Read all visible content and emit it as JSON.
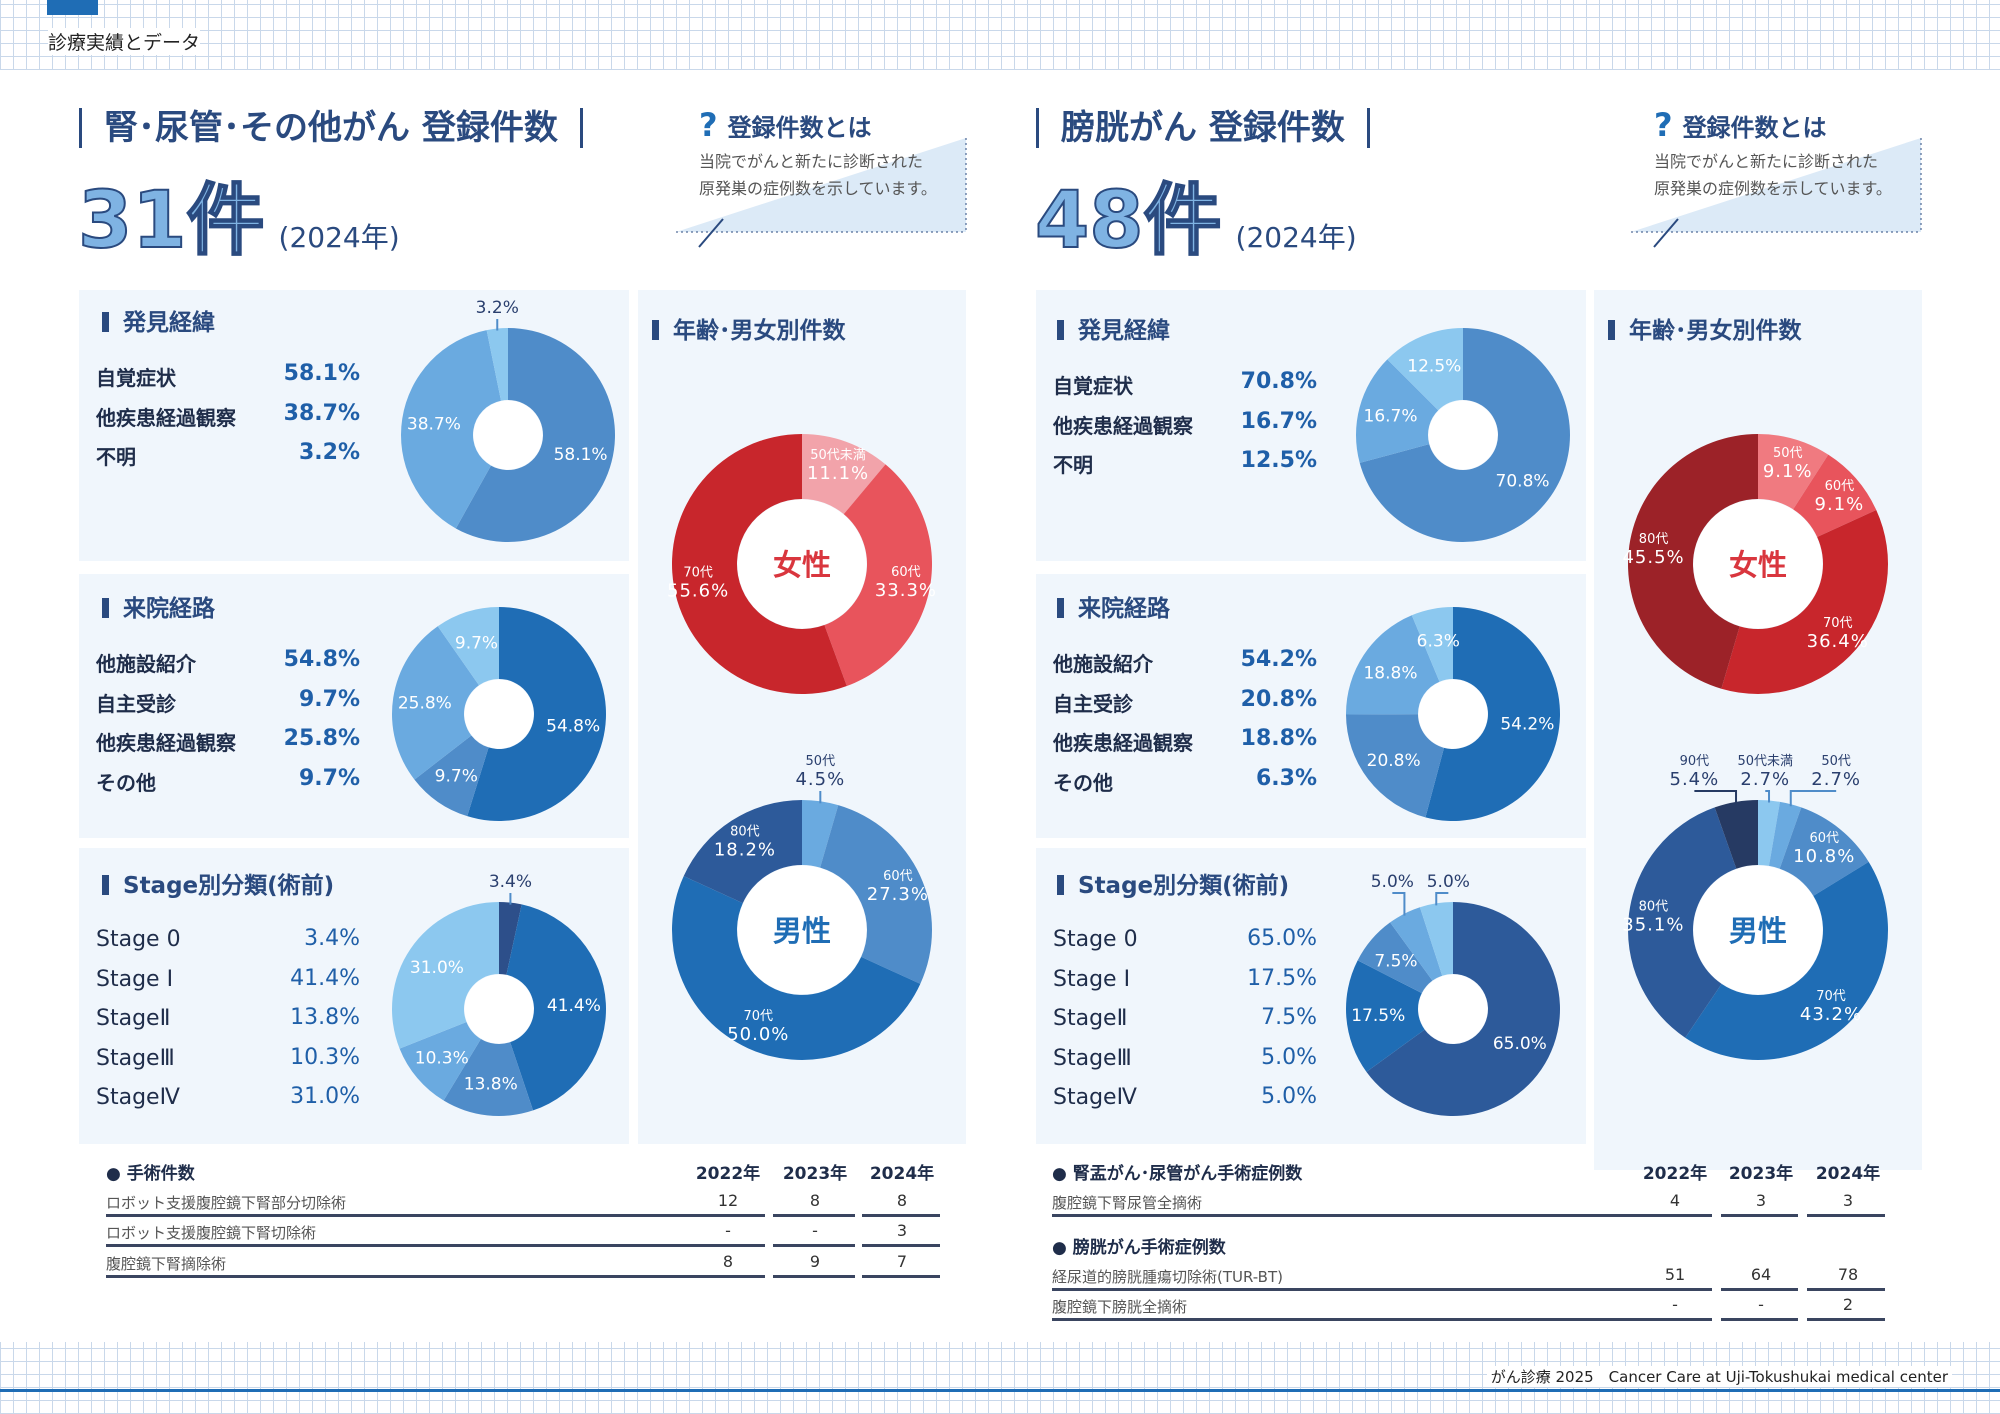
{
  "header": {
    "section": "診療実績とデータ"
  },
  "footer": {
    "text": "がん診療 2025　Cancer Care at Uji-Tokushukai medical center"
  },
  "left": {
    "title": "腎･尿管･その他がん 登録件数",
    "count": "31件",
    "year": "(2024年)",
    "info_title": "登録件数とは",
    "info_lines": [
      "当院でがんと新たに診断された",
      "原発巣の症例数を示しています。"
    ],
    "panels": {
      "discovery": "発見経緯",
      "route": "来院経路",
      "stage": "Stage別分類(術前)",
      "age": "年齢･男女別件数"
    },
    "table": {
      "heading": "手術件数",
      "years": [
        "2022年",
        "2023年",
        "2024年"
      ],
      "rows": [
        {
          "label": "ロボット支援腹腔鏡下腎部分切除術",
          "values": [
            "12",
            "8",
            "8"
          ]
        },
        {
          "label": "ロボット支援腹腔鏡下腎切除術",
          "values": [
            "-",
            "-",
            "3"
          ]
        },
        {
          "label": "腹腔鏡下腎摘除術",
          "values": [
            "8",
            "9",
            "7"
          ]
        }
      ]
    }
  },
  "right": {
    "title": "膀胱がん 登録件数",
    "count": "48件",
    "year": "(2024年)",
    "info_title": "登録件数とは",
    "info_lines": [
      "当院でがんと新たに診断された",
      "原発巣の症例数を示しています。"
    ],
    "panels": {
      "discovery": "発見経緯",
      "route": "来院経路",
      "stage": "Stage別分類(術前)",
      "age": "年齢･男女別件数"
    },
    "table": {
      "heading": "腎盂がん･尿管がん手術症例数",
      "years": [
        "2022年",
        "2023年",
        "2024年"
      ],
      "rows": [
        {
          "label": "腹腔鏡下腎尿管全摘術",
          "values": [
            "4",
            "3",
            "3"
          ]
        }
      ],
      "heading2": "膀胱がん手術症例数",
      "rows2": [
        {
          "label": "経尿道的膀胱腫瘍切除術(TUR-BT)",
          "values": [
            "51",
            "64",
            "78"
          ]
        },
        {
          "label": "腹腔鏡下膀胱全摘術",
          "values": [
            "-",
            "-",
            "2"
          ]
        }
      ]
    }
  },
  "chart_data": [
    {
      "type": "pie",
      "categories": [
        "自覚症状",
        "他疾患経過観察",
        "不明"
      ],
      "values": [
        58.1,
        38.7,
        3.2
      ],
      "colors": [
        "#4f8cc9",
        "#6aaae0",
        "#8cc8ef"
      ]
    },
    {
      "type": "pie",
      "categories": [
        "他施設紹介",
        "自主受診",
        "他疾患経過観察",
        "その他"
      ],
      "values": [
        54.8,
        9.7,
        25.8,
        9.7
      ],
      "colors": [
        "#1f6db5",
        "#4f8cc9",
        "#6aaae0",
        "#8cc8ef"
      ]
    },
    {
      "type": "pie",
      "categories": [
        "Stage 0",
        "Stage Ⅰ",
        "StageⅡ",
        "StageⅢ",
        "StageⅣ"
      ],
      "values": [
        3.4,
        41.4,
        13.8,
        10.3,
        31.0
      ],
      "colors": [
        "#2d4f8a",
        "#1f6db5",
        "#4f8cc9",
        "#6aaae0",
        "#8cc8ef"
      ]
    },
    {
      "type": "pie",
      "center": "女性",
      "center_color": "#d9363e",
      "categories": [
        "50代未満",
        "60代",
        "70代"
      ],
      "values": [
        11.1,
        33.3,
        55.6
      ],
      "colors": [
        "#f2a3aa",
        "#e8545c",
        "#c8262c"
      ]
    },
    {
      "type": "pie",
      "center": "男性",
      "center_color": "#1f6db5",
      "categories": [
        "50代",
        "60代",
        "70代",
        "80代"
      ],
      "values": [
        4.5,
        27.3,
        50.0,
        18.2
      ],
      "colors": [
        "#6aaae0",
        "#4f8cc9",
        "#1f6db5",
        "#2d5a9a"
      ]
    },
    {
      "type": "pie",
      "categories": [
        "自覚症状",
        "他疾患経過観察",
        "不明"
      ],
      "values": [
        70.8,
        16.7,
        12.5
      ],
      "colors": [
        "#4f8cc9",
        "#6aaae0",
        "#8cc8ef"
      ]
    },
    {
      "type": "pie",
      "categories": [
        "他施設紹介",
        "自主受診",
        "他疾患経過観察",
        "その他"
      ],
      "values": [
        54.2,
        20.8,
        18.8,
        6.3
      ],
      "colors": [
        "#1f6db5",
        "#4f8cc9",
        "#6aaae0",
        "#8cc8ef"
      ]
    },
    {
      "type": "pie",
      "categories": [
        "Stage 0",
        "Stage Ⅰ",
        "StageⅡ",
        "StageⅢ",
        "StageⅣ"
      ],
      "values": [
        65.0,
        17.5,
        7.5,
        5.0,
        5.0
      ],
      "colors": [
        "#2d5a9a",
        "#1f6db5",
        "#4f8cc9",
        "#6aaae0",
        "#8cc8ef"
      ],
      "draw_order": [
        4,
        3,
        2,
        1,
        0
      ]
    },
    {
      "type": "pie",
      "center": "女性",
      "center_color": "#d9363e",
      "categories": [
        "50代",
        "60代",
        "70代",
        "80代"
      ],
      "values": [
        9.1,
        9.1,
        36.4,
        45.5
      ],
      "colors": [
        "#f07a80",
        "#e8545c",
        "#c8262c",
        "#9c2228"
      ]
    },
    {
      "type": "pie",
      "center": "男性",
      "center_color": "#1f6db5",
      "categories": [
        "50代未満",
        "50代",
        "60代",
        "70代",
        "80代",
        "90代"
      ],
      "values": [
        2.7,
        2.7,
        10.8,
        43.2,
        35.1,
        5.4
      ],
      "colors": [
        "#8cc8ef",
        "#6aaae0",
        "#4f8cc9",
        "#1f6db5",
        "#2d5a9a",
        "#263a63"
      ]
    }
  ]
}
